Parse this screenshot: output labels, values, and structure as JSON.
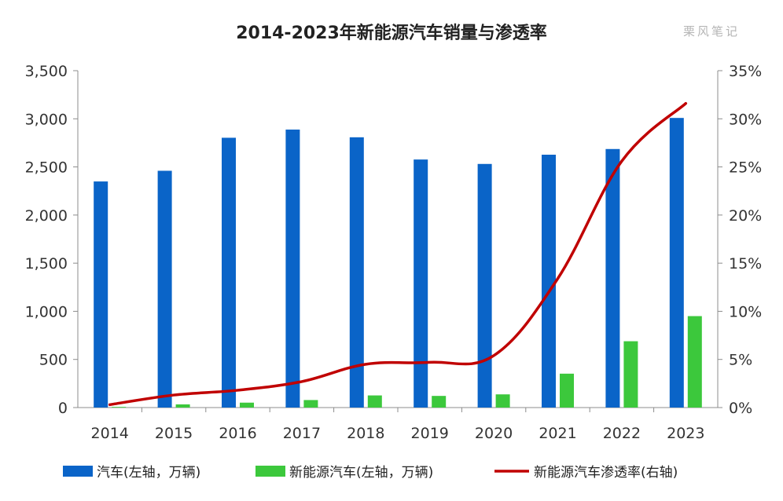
{
  "chart_data": {
    "type": "bar",
    "title": "2014-2023年新能源汽车销量与渗透率",
    "watermark": "栗风笔记",
    "categories": [
      "2014",
      "2015",
      "2016",
      "2017",
      "2018",
      "2019",
      "2020",
      "2021",
      "2022",
      "2023"
    ],
    "series": [
      {
        "name": "汽车(左轴，万辆)",
        "type": "bar",
        "axis": "left",
        "color": "#0a64c8",
        "values": [
          2349,
          2460,
          2803,
          2888,
          2808,
          2577,
          2531,
          2627,
          2686,
          3009
        ]
      },
      {
        "name": "新能源汽车(左轴，万辆)",
        "type": "bar",
        "axis": "left",
        "color": "#3cc83c",
        "values": [
          7,
          33,
          51,
          78,
          126,
          121,
          137,
          352,
          689,
          950
        ]
      },
      {
        "name": "新能源汽车渗透率(右轴)",
        "type": "line",
        "axis": "right",
        "color": "#c00000",
        "values": [
          0.3,
          1.3,
          1.8,
          2.7,
          4.5,
          4.7,
          5.4,
          13.4,
          25.6,
          31.6
        ]
      }
    ],
    "y_left": {
      "min": 0,
      "max": 3500,
      "ticks": [
        "0",
        "500",
        "1,000",
        "1,500",
        "2,000",
        "2,500",
        "3,000",
        "3,500"
      ]
    },
    "y_right": {
      "min": 0,
      "max": 35,
      "unit": "%",
      "ticks": [
        "0%",
        "5%",
        "10%",
        "15%",
        "20%",
        "25%",
        "30%",
        "35%"
      ]
    },
    "grid": false,
    "legend_position": "bottom"
  }
}
